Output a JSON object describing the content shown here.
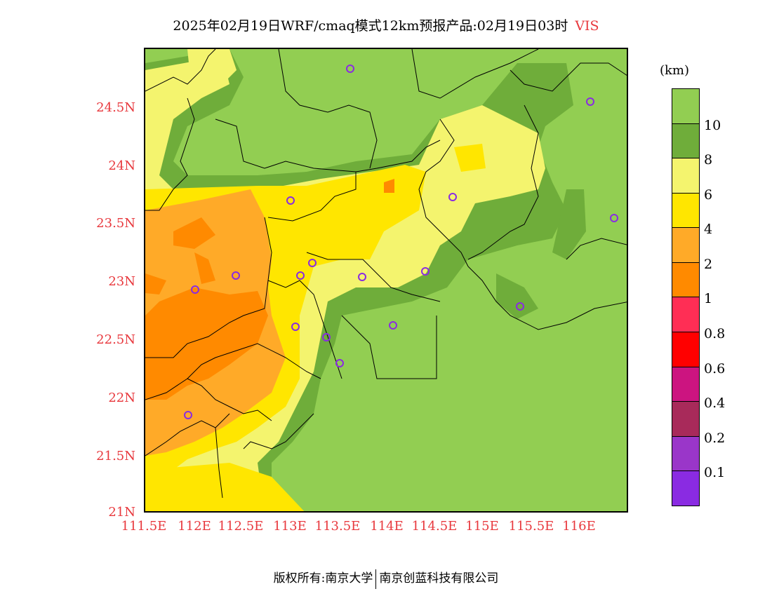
{
  "title": {
    "main": "2025年02月19日WRF/cmaq模式12km预报产品:02月19日03时",
    "variable": "VIS"
  },
  "lat_labels": [
    "24.5N",
    "24N",
    "23.5N",
    "23N",
    "22.5N",
    "22N",
    "21.5N",
    "21N"
  ],
  "lon_labels": [
    "111.5E",
    "112E",
    "112.5E",
    "113E",
    "113.5E",
    "114E",
    "114.5E",
    "115E",
    "115.5E",
    "116E"
  ],
  "legend": {
    "unit": "(km)",
    "levels": [
      "10",
      "8",
      "6",
      "4",
      "2",
      "1",
      "0.8",
      "0.6",
      "0.4",
      "0.2",
      "0.1"
    ],
    "colors": [
      "#92ce52",
      "#6fad3a",
      "#f4f46e",
      "#ffe600",
      "#ffaa28",
      "#ff8a00",
      "#ff2e55",
      "#ff0000",
      "#cc1480",
      "#a82a5a",
      "#9a36c9",
      "#8a2be2"
    ]
  },
  "footer": {
    "left": "版权所有:南京大学",
    "right": "南京创蓝科技有限公司"
  }
}
